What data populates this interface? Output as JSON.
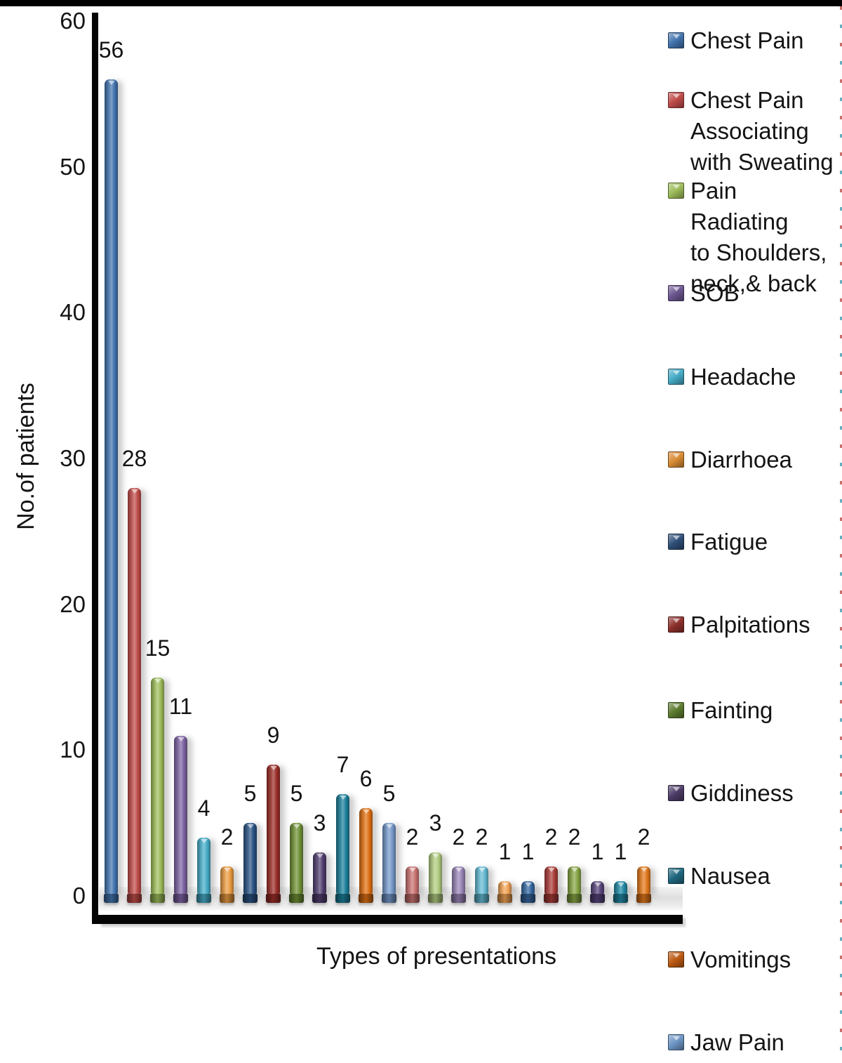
{
  "chart_data": {
    "type": "bar",
    "title": "",
    "xlabel": "Types of presentations",
    "ylabel": "No.of patients",
    "ylim": [
      0,
      60
    ],
    "yticks": [
      60,
      50,
      40,
      30,
      20,
      10,
      0
    ],
    "grid": "off",
    "legend_position": "right",
    "values": [
      56,
      28,
      15,
      11,
      4,
      2,
      5,
      9,
      5,
      3,
      7,
      6,
      5,
      2,
      3,
      2,
      2,
      1,
      1,
      2,
      2,
      1,
      1,
      2
    ],
    "bar_colors": [
      "#4173AD",
      "#BE4B48",
      "#9CBB59",
      "#7C62A1",
      "#45AAC5",
      "#E89A40",
      "#2A5282",
      "#9A2D28",
      "#6E8F35",
      "#503D6E",
      "#1B7E99",
      "#DD6E12",
      "#7396C8",
      "#C7716E",
      "#AFC97E",
      "#9783B5",
      "#62B8D1",
      "#F0A153",
      "#36679E",
      "#A73B37",
      "#84A342",
      "#56437A",
      "#2187A3",
      "#E0761A"
    ],
    "legend": [
      {
        "lines": [
          "Chest Pain"
        ],
        "color": "#4173AD"
      },
      {
        "lines": [
          "Chest Pain",
          "Associating",
          "with Sweating"
        ],
        "color": "#BE4B48"
      },
      {
        "lines": [
          "Pain Radiating",
          "to Shoulders,",
          "neck,& back"
        ],
        "color": "#9CBB59"
      },
      {
        "lines": [
          "SOB"
        ],
        "color": "#6B5590"
      },
      {
        "lines": [
          "Headache"
        ],
        "color": "#45AAC5"
      },
      {
        "lines": [
          "Diarrhoea"
        ],
        "color": "#D88B33"
      },
      {
        "lines": [
          "Fatigue"
        ],
        "color": "#2E4E77"
      },
      {
        "lines": [
          "Palpitations"
        ],
        "color": "#8C2F2B"
      },
      {
        "lines": [
          "Fainting"
        ],
        "color": "#5C7A2E"
      },
      {
        "lines": [
          "Giddiness"
        ],
        "color": "#4C3B66"
      },
      {
        "lines": [
          "Nausea"
        ],
        "color": "#20677F"
      },
      {
        "lines": [
          "Vomitings"
        ],
        "color": "#BC5A12"
      },
      {
        "lines": [
          "Jaw Pain"
        ],
        "color": "#6C94C4"
      }
    ],
    "axis_color": "#050505"
  }
}
